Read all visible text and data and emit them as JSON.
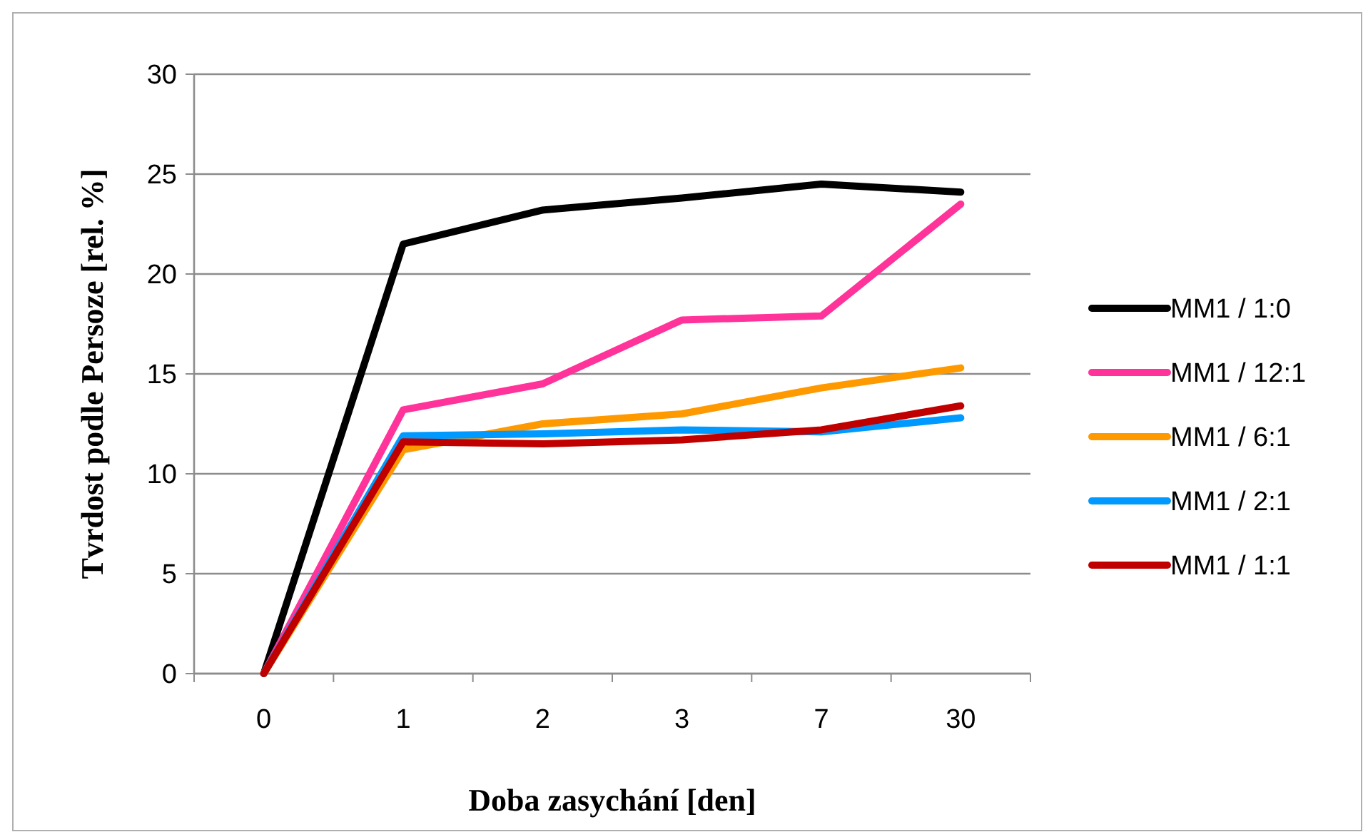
{
  "chart_data": {
    "type": "line",
    "xlabel": "Doba zasychání [den]",
    "ylabel": "Tvrdost podle Persoze [rel. %]",
    "categories": [
      "0",
      "1",
      "2",
      "3",
      "7",
      "30"
    ],
    "series": [
      {
        "name": "MM1 / 1:0",
        "color": "#000000",
        "values": [
          0,
          21.5,
          23.2,
          23.8,
          24.5,
          24.1
        ]
      },
      {
        "name": "MM1 / 12:1",
        "color": "#ff3399",
        "values": [
          0,
          13.2,
          14.5,
          17.7,
          17.9,
          23.5
        ]
      },
      {
        "name": "MM1 / 6:1",
        "color": "#ff9900",
        "values": [
          0,
          11.2,
          12.5,
          13.0,
          14.3,
          15.3
        ]
      },
      {
        "name": "MM1 / 2:1",
        "color": "#0099ff",
        "values": [
          0,
          11.9,
          12.0,
          12.2,
          12.1,
          12.8
        ]
      },
      {
        "name": "MM1 / 1:1",
        "color": "#c00000",
        "values": [
          0,
          11.6,
          11.5,
          11.7,
          12.2,
          13.4
        ]
      }
    ],
    "ylim": [
      0,
      30
    ],
    "yticks": [
      0,
      5,
      10,
      15,
      20,
      25,
      30
    ],
    "grid": "y",
    "legend": "right",
    "marker": "none",
    "line_style": "solid"
  }
}
